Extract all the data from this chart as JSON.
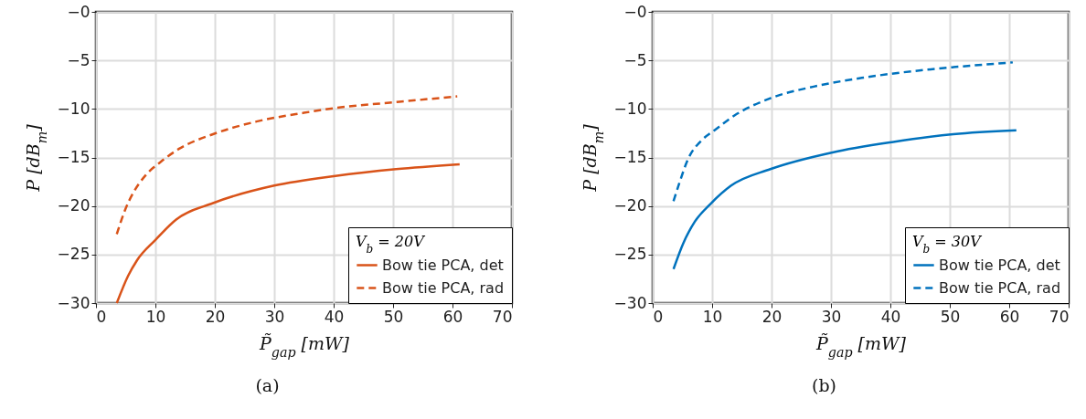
{
  "chart_data": [
    {
      "type": "line",
      "xlabel": "P̃$_{gap}$ [mW]",
      "ylabel": "P [dB$_{m}$]",
      "legend_title": "V$_{b}$ = 20V",
      "annotations": [
        "(a)"
      ],
      "xlim": [
        0,
        70
      ],
      "xticks": [
        0,
        10,
        20,
        30,
        40,
        50,
        60,
        70
      ],
      "ylim": [
        -30,
        0
      ],
      "yticks": [
        -30,
        -25,
        -20,
        -15,
        -10,
        -5,
        {
          "value": 0,
          "label": "−0"
        }
      ],
      "grid": true,
      "legend": "bottom right",
      "series": [
        {
          "name": "Bow tie PCA, det",
          "color": "#d95319",
          "line_style": "solid",
          "x": [
            3.5,
            5.4,
            6.9,
            10,
            13.5,
            19.7,
            30,
            40.3,
            50.5,
            61.2
          ],
          "values": [
            -30,
            -27.2,
            -25.6,
            -23.5,
            -21.4,
            -19.7,
            -17.9,
            -16.9,
            -16.2,
            -15.7
          ]
        },
        {
          "name": "Bow tie PCA, rad",
          "color": "#d95319",
          "line_style": "dashed",
          "x": [
            3.5,
            4.9,
            6.4,
            8.4,
            11,
            14,
            19.7,
            27,
            35,
            40.3,
            50.5,
            60.8
          ],
          "values": [
            -22.9,
            -20.4,
            -18.5,
            -16.8,
            -15.4,
            -14.1,
            -12.6,
            -11.3,
            -10.4,
            -9.9,
            -9.3,
            -8.7
          ]
        }
      ]
    },
    {
      "type": "line",
      "xlabel": "P̃$_{gap}$ [mW]",
      "ylabel": "P [dB$_{m}$]",
      "legend_title": "V$_{b}$ = 30V",
      "annotations": [
        "(b)"
      ],
      "xlim": [
        0,
        70
      ],
      "xticks": [
        0,
        10,
        20,
        30,
        40,
        50,
        60,
        70
      ],
      "ylim": [
        -30,
        0
      ],
      "yticks": [
        -30,
        -25,
        -20,
        -15,
        -10,
        -5,
        {
          "value": 0,
          "label": "−0"
        }
      ],
      "grid": true,
      "legend": "bottom right",
      "series": [
        {
          "name": "Bow tie PCA, det",
          "color": "#0072bd",
          "line_style": "solid",
          "x": [
            3.5,
            5.1,
            7.1,
            9.7,
            13.2,
            19.8,
            30.1,
            40.5,
            50.6,
            61.2
          ],
          "values": [
            -26.5,
            -23.9,
            -21.6,
            -19.8,
            -17.9,
            -16.2,
            -14.5,
            -13.4,
            -12.6,
            -12.2
          ]
        },
        {
          "name": "Bow tie PCA, rad",
          "color": "#0072bd",
          "line_style": "dashed",
          "x": [
            3.5,
            4.5,
            6,
            8.3,
            10.4,
            13.7,
            19.8,
            27.1,
            35.2,
            45.5,
            50.6,
            60.6
          ],
          "values": [
            -19.5,
            -17.6,
            -15.1,
            -13.2,
            -12.2,
            -10.7,
            -8.9,
            -7.7,
            -6.8,
            -6.0,
            -5.7,
            -5.2
          ]
        }
      ]
    }
  ]
}
